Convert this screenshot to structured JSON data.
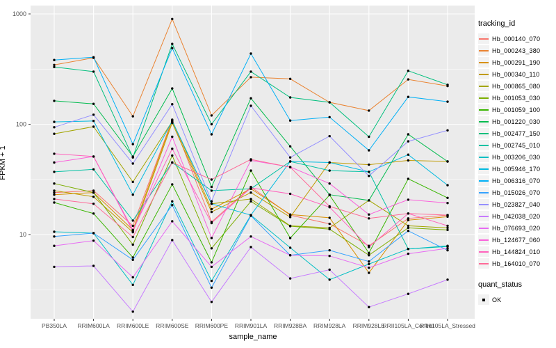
{
  "chart_data": {
    "type": "line",
    "title": "",
    "xlabel": "sample_name",
    "ylabel": "FPKM + 1",
    "yscale": "log10",
    "ylim": [
      1.7,
      1150
    ],
    "yticks": [
      10,
      100,
      1000
    ],
    "yticks_minor": [
      3.162,
      31.62,
      316.2
    ],
    "grid": true,
    "legend_position": "right",
    "panel_color": "#EBEBEB",
    "grid_color": "#FFFFFF",
    "tick_label_color": "#4D4D4D",
    "point_color": "#000000",
    "categories": [
      "PB350LA",
      "RRIM600LA",
      "RRIM600LE",
      "RRIM600SE",
      "RRIM600PE",
      "RRIM901LA",
      "RRIM928BA",
      "RRIM928LA",
      "RRIM928LE",
      "RRII105LA_Control",
      "RRII105LA_Stressed"
    ],
    "series": [
      {
        "name": "Hb_000140_070",
        "color": "#F8766D",
        "values": [
          24,
          25,
          12,
          110,
          13,
          27,
          15,
          12.5,
          7.9,
          14,
          15
        ]
      },
      {
        "name": "Hb_000243_380",
        "color": "#EA8331",
        "values": [
          345,
          400,
          118,
          900,
          120,
          267,
          258,
          158,
          133,
          255,
          222
        ]
      },
      {
        "name": "Hb_000291_190",
        "color": "#D89000",
        "values": [
          23,
          24,
          11,
          108,
          17,
          26,
          15.2,
          14.2,
          4.5,
          13.5,
          14.5
        ]
      },
      {
        "name": "Hb_000340_110",
        "color": "#C09B00",
        "values": [
          25,
          22,
          10.5,
          103,
          16,
          24,
          14.4,
          45,
          43,
          47,
          46
        ]
      },
      {
        "name": "Hb_000865_080",
        "color": "#A3A500",
        "values": [
          82,
          95,
          30,
          106,
          19,
          21,
          12,
          11.5,
          20.4,
          12,
          11.5
        ]
      },
      {
        "name": "Hb_001053_030",
        "color": "#7CAE00",
        "values": [
          29,
          24,
          8.1,
          52,
          7.5,
          20,
          11.9,
          11.2,
          6.5,
          11.5,
          11
        ]
      },
      {
        "name": "Hb_001059_100",
        "color": "#39B600",
        "values": [
          19.5,
          15.5,
          6.2,
          28.5,
          5.6,
          38,
          9.3,
          22.8,
          6.8,
          32,
          21.5
        ]
      },
      {
        "name": "Hb_001220_030",
        "color": "#00BB4E",
        "values": [
          163,
          153,
          51,
          211,
          27,
          172,
          63,
          23,
          20.4,
          81,
          46
        ]
      },
      {
        "name": "Hb_002477_150",
        "color": "#00BF7D",
        "values": [
          330,
          300,
          50,
          535,
          100,
          300,
          175,
          158,
          77,
          305,
          228
        ]
      },
      {
        "name": "Hb_002745_010",
        "color": "#00C1A3",
        "values": [
          37,
          39,
          13.4,
          45,
          25,
          26,
          46,
          38,
          37,
          7.4,
          7.8
        ]
      },
      {
        "name": "Hb_003206_030",
        "color": "#00BFC4",
        "values": [
          10.6,
          10.3,
          3.5,
          20,
          3.8,
          15,
          7.6,
          3.9,
          5.4,
          7.4,
          7.9
        ]
      },
      {
        "name": "Hb_005946_170",
        "color": "#00BAE0",
        "values": [
          105,
          107,
          23,
          107,
          19,
          15,
          46,
          45,
          37,
          53,
          28
        ]
      },
      {
        "name": "Hb_006316_070",
        "color": "#00B0F6",
        "values": [
          382,
          405,
          66,
          490,
          81,
          437,
          108,
          116,
          58,
          177,
          160
        ]
      },
      {
        "name": "Hb_015026_070",
        "color": "#35A2FF",
        "values": [
          9.6,
          10.3,
          5.9,
          18.5,
          3.3,
          14.8,
          6.5,
          7.2,
          5.7,
          10.8,
          7.2
        ]
      },
      {
        "name": "Hb_023827_040",
        "color": "#9590FF",
        "values": [
          94,
          122,
          44,
          152,
          20,
          147,
          50,
          78,
          34,
          70,
          88
        ]
      },
      {
        "name": "Hb_042038_020",
        "color": "#C77CFF",
        "values": [
          5.1,
          5.2,
          2.0,
          8.9,
          2.45,
          7.7,
          4.0,
          4.8,
          2.2,
          2.9,
          3.9
        ]
      },
      {
        "name": "Hb_076693_020",
        "color": "#E76BF3",
        "values": [
          7.9,
          8.8,
          4.1,
          13.2,
          5.1,
          9.6,
          6.5,
          6.4,
          5.0,
          6.7,
          7.5
        ]
      },
      {
        "name": "Hb_124677_060",
        "color": "#FA62DB",
        "values": [
          45,
          51,
          10.7,
          77,
          9.3,
          47,
          41,
          29,
          15.2,
          20.7,
          19.3
        ]
      },
      {
        "name": "Hb_144824_010",
        "color": "#FF62BC",
        "values": [
          54,
          51,
          11,
          60,
          12.7,
          26.5,
          23.4,
          17.7,
          7.7,
          15.5,
          12
        ]
      },
      {
        "name": "Hb_164010_070",
        "color": "#FF6A98",
        "values": [
          21,
          19,
          9.5,
          45,
          31.5,
          48,
          40.8,
          18,
          14,
          15.5,
          15
        ]
      }
    ]
  },
  "legend": {
    "tracking_title": "tracking_id",
    "quant_title": "quant_status",
    "quant_ok_label": "OK"
  },
  "axes": {
    "x_title": "sample_name",
    "y_title": "FPKM + 1",
    "y_tick_labels": [
      "10",
      "100",
      "1000"
    ]
  }
}
